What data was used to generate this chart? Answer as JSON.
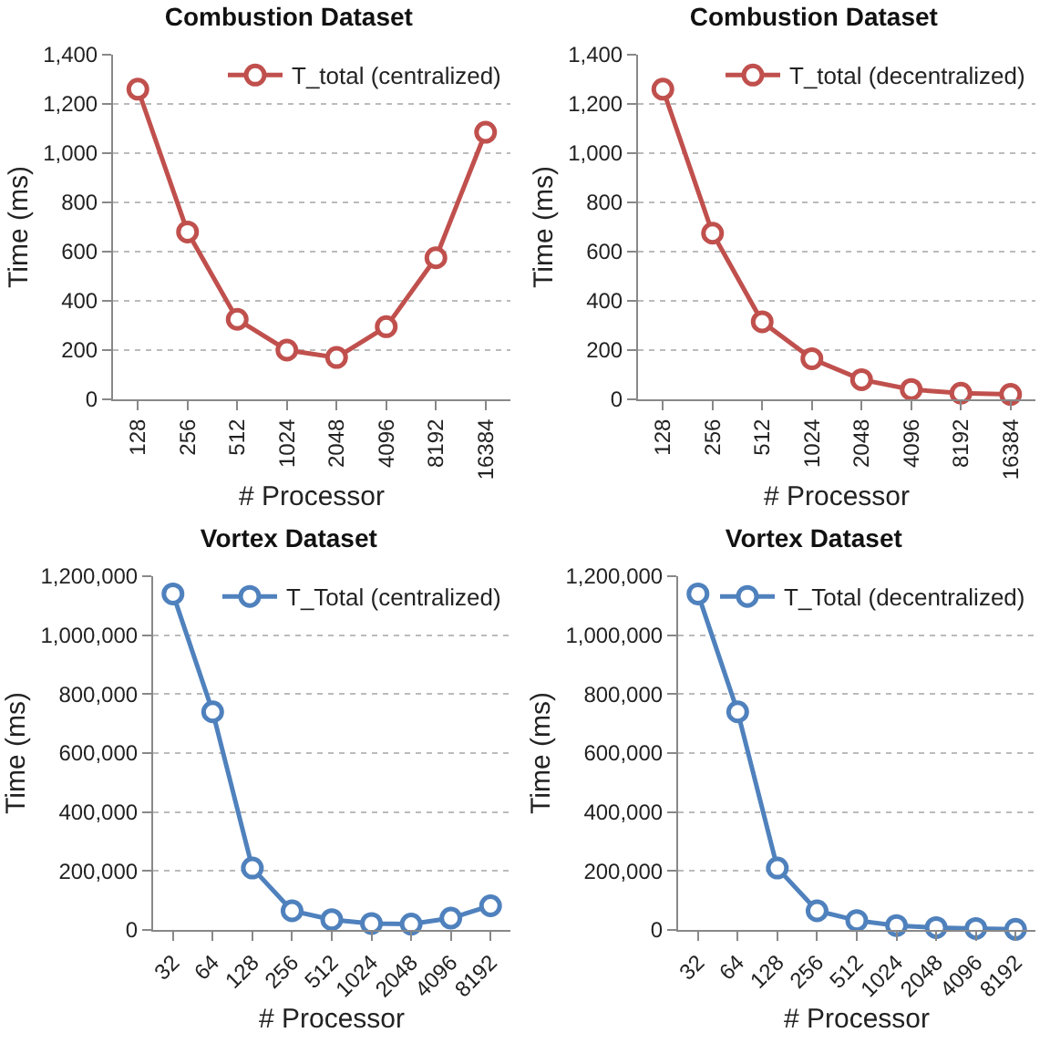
{
  "chart_data": [
    {
      "type": "line",
      "title": "Combustion Dataset",
      "xlabel": "# Processor",
      "ylabel": "Time (ms)",
      "categories": [
        "128",
        "256",
        "512",
        "1024",
        "2048",
        "4096",
        "8192",
        "16384"
      ],
      "series": [
        {
          "name": "T_total (centralized)",
          "color": "#c0504d",
          "values": [
            1260,
            680,
            325,
            200,
            170,
            295,
            575,
            1085
          ]
        }
      ],
      "ylim": [
        0,
        1400
      ],
      "yticks": [
        0,
        200,
        400,
        600,
        800,
        {
          "value": 1000,
          "label": "1,000"
        },
        {
          "value": 1200,
          "label": "1,200"
        },
        {
          "value": 1400,
          "label": "1,400"
        }
      ],
      "grid": "y",
      "legend": "top right",
      "marker": "circle",
      "line_style": "solid"
    },
    {
      "type": "line",
      "title": "Combustion Dataset",
      "xlabel": "# Processor",
      "ylabel": "Time (ms)",
      "categories": [
        "128",
        "256",
        "512",
        "1024",
        "2048",
        "4096",
        "8192",
        "16384"
      ],
      "series": [
        {
          "name": "T_total (decentralized)",
          "color": "#c0504d",
          "values": [
            1260,
            675,
            315,
            165,
            80,
            40,
            25,
            20
          ]
        }
      ],
      "ylim": [
        0,
        1400
      ],
      "yticks": [
        0,
        200,
        400,
        600,
        800,
        {
          "value": 1000,
          "label": "1,000"
        },
        {
          "value": 1200,
          "label": "1,200"
        },
        {
          "value": 1400,
          "label": "1,400"
        }
      ],
      "grid": "y",
      "legend": "top right",
      "marker": "circle",
      "line_style": "solid"
    },
    {
      "type": "line",
      "title": "Vortex Dataset",
      "xlabel": "# Processor",
      "ylabel": "Time (ms)",
      "categories": [
        "32",
        "64",
        "128",
        "256",
        "512",
        "1024",
        "2048",
        "4096",
        "8192"
      ],
      "series": [
        {
          "name": "T_Total (centralized)",
          "color": "#4f81bd",
          "values": [
            1140000,
            740000,
            210000,
            65000,
            35000,
            22000,
            20000,
            40000,
            82000
          ]
        }
      ],
      "ylim": [
        0,
        1200000
      ],
      "yticks": [
        0,
        {
          "value": 200000,
          "label": "200,000"
        },
        {
          "value": 400000,
          "label": "400,000"
        },
        {
          "value": 600000,
          "label": "600,000"
        },
        {
          "value": 800000,
          "label": "800,000"
        },
        {
          "value": 1000000,
          "label": "1,000,000"
        },
        {
          "value": 1200000,
          "label": "1,200,000"
        }
      ],
      "grid": "y",
      "legend": "top right",
      "marker": "circle",
      "line_style": "solid"
    },
    {
      "type": "line",
      "title": "Vortex Dataset",
      "xlabel": "# Processor",
      "ylabel": "Time (ms)",
      "categories": [
        "32",
        "64",
        "128",
        "256",
        "512",
        "1024",
        "2048",
        "4096",
        "8192"
      ],
      "series": [
        {
          "name": "T_Total (decentralized)",
          "color": "#4f81bd",
          "values": [
            1140000,
            740000,
            210000,
            65000,
            32000,
            15000,
            8000,
            5000,
            2000
          ]
        }
      ],
      "ylim": [
        0,
        1200000
      ],
      "yticks": [
        0,
        {
          "value": 200000,
          "label": "200,000"
        },
        {
          "value": 400000,
          "label": "400,000"
        },
        {
          "value": 600000,
          "label": "600,000"
        },
        {
          "value": 800000,
          "label": "800,000"
        },
        {
          "value": 1000000,
          "label": "1,000,000"
        },
        {
          "value": 1200000,
          "label": "1,200,000"
        }
      ],
      "grid": "y",
      "legend": "top right",
      "marker": "circle",
      "line_style": "solid"
    }
  ]
}
